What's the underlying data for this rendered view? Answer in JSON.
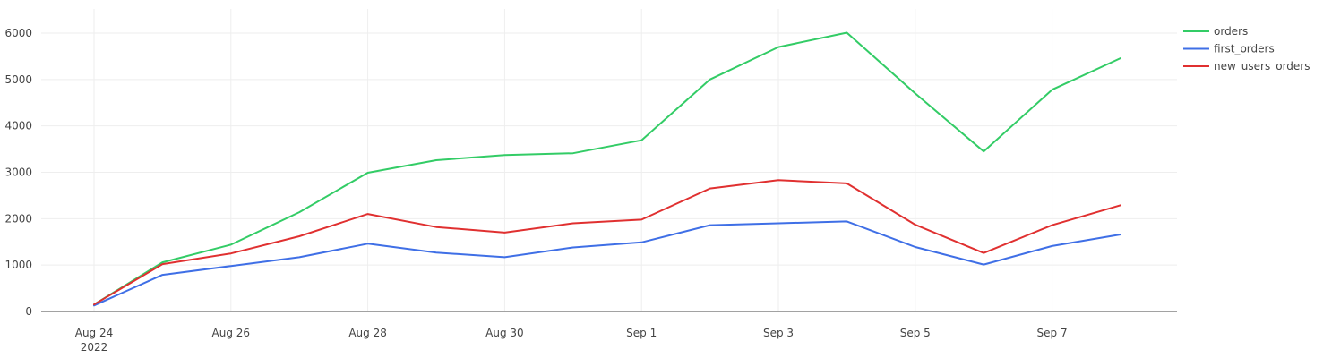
{
  "chart_data": {
    "type": "line",
    "x": [
      "2022-08-24",
      "2022-08-25",
      "2022-08-26",
      "2022-08-27",
      "2022-08-28",
      "2022-08-29",
      "2022-08-30",
      "2022-08-31",
      "2022-09-01",
      "2022-09-02",
      "2022-09-03",
      "2022-09-04",
      "2022-09-05",
      "2022-09-06",
      "2022-09-07",
      "2022-09-08"
    ],
    "x_ticks": [
      "Aug 24",
      "Aug 26",
      "Aug 28",
      "Aug 30",
      "Sep 1",
      "Sep 3",
      "Sep 5",
      "Sep 7"
    ],
    "x_tick_year": "2022",
    "y_ticks": [
      "0",
      "1000",
      "2000",
      "3000",
      "4000",
      "5000",
      "6000"
    ],
    "ylim": [
      0,
      6100
    ],
    "grid": true,
    "legend_position": "top-right",
    "title": "",
    "xlabel": "",
    "ylabel": "",
    "series": [
      {
        "name": "orders",
        "color": "#33cc66",
        "values": [
          150,
          1060,
          1440,
          2140,
          2990,
          3260,
          3370,
          3410,
          3690,
          5000,
          5700,
          6010,
          4700,
          3450,
          4780,
          5460
        ]
      },
      {
        "name": "first_orders",
        "color": "#3f6fe6",
        "values": [
          130,
          790,
          980,
          1170,
          1460,
          1270,
          1170,
          1380,
          1490,
          1860,
          1900,
          1940,
          1390,
          1010,
          1410,
          1660
        ]
      },
      {
        "name": "new_users_orders",
        "color": "#e03030",
        "values": [
          150,
          1020,
          1250,
          1620,
          2100,
          1820,
          1700,
          1900,
          1980,
          2650,
          2830,
          2760,
          1870,
          1260,
          1860,
          2290
        ]
      }
    ]
  }
}
